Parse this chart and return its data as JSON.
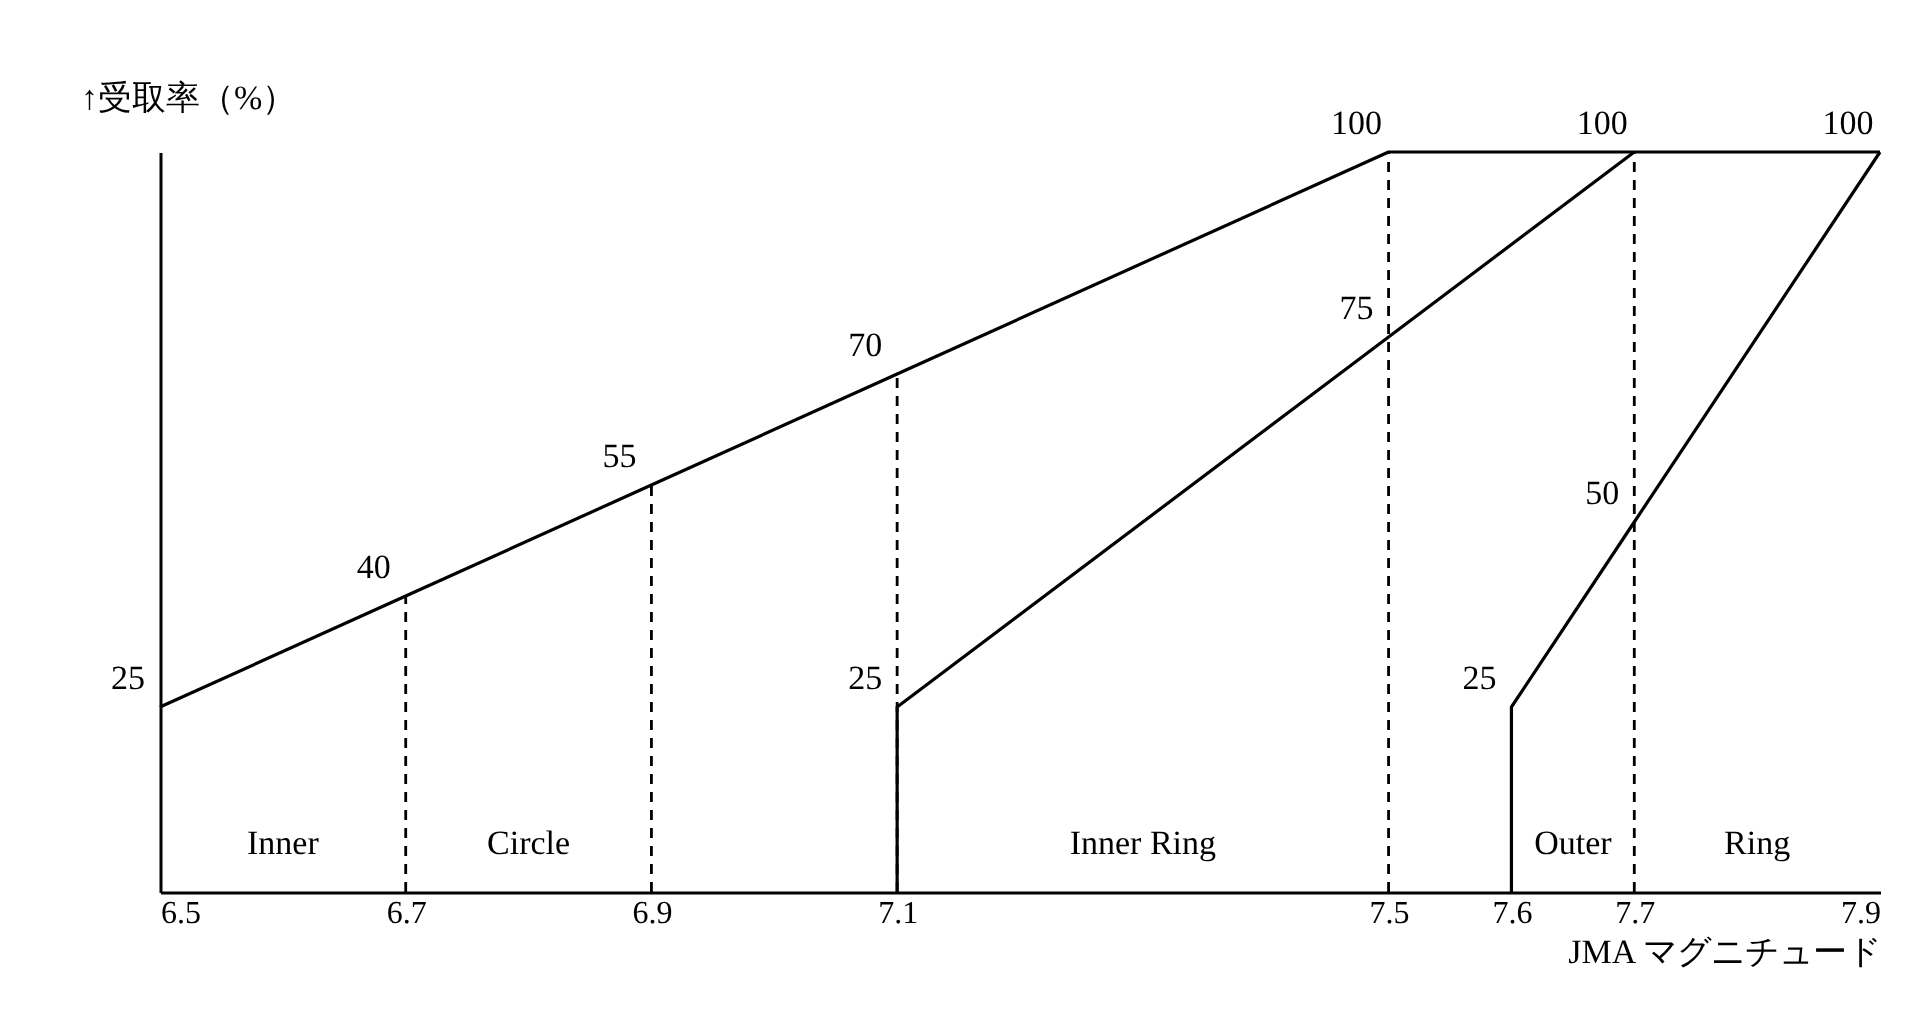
{
  "chart_data": {
    "type": "line",
    "xlabel": "JMA マグニチュード",
    "ylabel": "↑受取率（%）",
    "xlim": [
      6.5,
      7.9
    ],
    "xticks": [
      6.5,
      6.7,
      6.9,
      7.1,
      7.5,
      7.6,
      7.7,
      7.9
    ],
    "ylim": [
      0,
      100
    ],
    "tick_labels": "x",
    "grid": false,
    "line_style": "solid",
    "marker": "none",
    "series": [
      {
        "color": "#000000",
        "x": [
          6.5,
          6.7,
          6.9,
          7.1,
          7.5,
          7.9
        ],
        "values": [
          25,
          40,
          55,
          70,
          100,
          100
        ],
        "value_labels": [
          "25",
          "40",
          "55",
          "70",
          "100",
          null
        ]
      },
      {
        "color": "#000000",
        "x": [
          7.1,
          7.1,
          7.5,
          7.7
        ],
        "values": [
          0,
          25,
          75,
          100
        ],
        "value_labels": [
          null,
          "25",
          "75",
          "100"
        ]
      },
      {
        "color": "#000000",
        "x": [
          7.6,
          7.6,
          7.7,
          7.9
        ],
        "values": [
          0,
          25,
          50,
          100
        ],
        "value_labels": [
          null,
          "25",
          "50",
          "100"
        ]
      }
    ],
    "ref_lines": [
      {
        "axis": "x",
        "value": 6.7,
        "color": "#000000",
        "line_style": "dashed"
      },
      {
        "axis": "x",
        "value": 6.9,
        "color": "#000000",
        "line_style": "dashed"
      },
      {
        "axis": "x",
        "value": 7.1,
        "color": "#000000",
        "line_style": "dashed"
      },
      {
        "axis": "x",
        "value": 7.5,
        "color": "#000000",
        "line_style": "dashed"
      },
      {
        "axis": "x",
        "value": 7.7,
        "color": "#000000",
        "line_style": "dashed"
      }
    ],
    "annotations": [
      "Inner",
      "Circle",
      "Inner Ring",
      "Outer",
      "Ring"
    ]
  }
}
